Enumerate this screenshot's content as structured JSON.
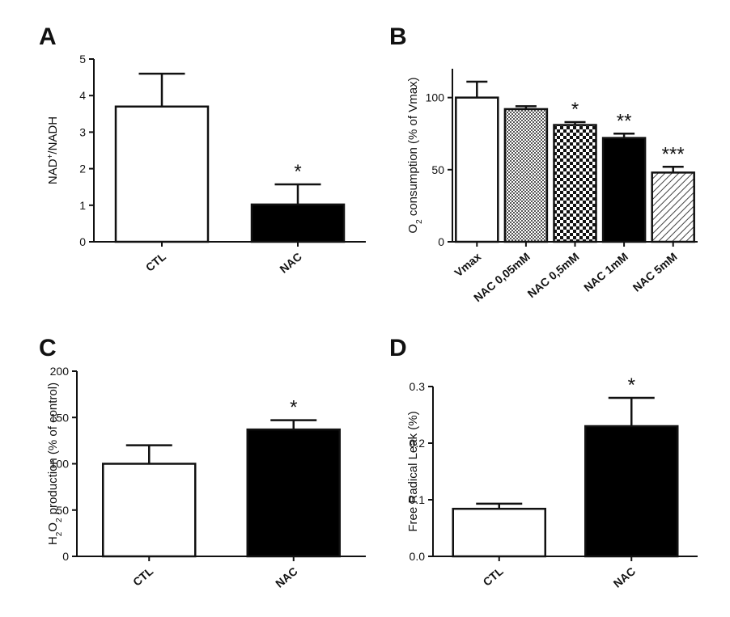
{
  "chart_data": [
    {
      "panel": "A",
      "type": "bar",
      "categories": [
        "CTL",
        "NAC"
      ],
      "values": [
        3.7,
        1.02
      ],
      "errors": [
        0.9,
        0.55
      ],
      "fills": [
        "white",
        "black"
      ],
      "significance": [
        "",
        "*"
      ],
      "ylabel": {
        "main": "NAD",
        "sup": "+",
        "rest": "/NADH"
      },
      "ylim": [
        0,
        5
      ],
      "yticks": [
        "0",
        "1",
        "2",
        "3",
        "4",
        "5"
      ],
      "rotate_labels": true
    },
    {
      "panel": "B",
      "type": "bar",
      "categories": [
        "Vmax",
        "NAC 0,05mM",
        "NAC 0,5mM",
        "NAC 1mM",
        "NAC 5mM"
      ],
      "values": [
        100,
        92,
        81,
        72,
        48
      ],
      "errors": [
        11,
        2,
        2,
        3,
        4
      ],
      "fills": [
        "white",
        "crosshatch-fine",
        "checker",
        "black",
        "diagonal"
      ],
      "significance": [
        "",
        "",
        "*",
        "**",
        "***"
      ],
      "ylabel": {
        "pre": "O",
        "sub": "2",
        "rest": " consumption (% of Vmax)"
      },
      "ylim": [
        0,
        120
      ],
      "yticks": [
        "0",
        "50",
        "100"
      ],
      "rotate_labels": true
    },
    {
      "panel": "C",
      "type": "bar",
      "categories": [
        "CTL",
        "NAC"
      ],
      "values": [
        100,
        137
      ],
      "errors": [
        20,
        10
      ],
      "fills": [
        "white",
        "black"
      ],
      "significance": [
        "",
        "*"
      ],
      "ylabel": {
        "pre": "H",
        "sub": "2",
        "mid": "O",
        "sub2": "2",
        "rest": " production (% of control)"
      },
      "ylim": [
        0,
        200
      ],
      "yticks": [
        "0",
        "50",
        "100",
        "150",
        "200"
      ],
      "rotate_labels": true
    },
    {
      "panel": "D",
      "type": "bar",
      "categories": [
        "CTL",
        "NAC"
      ],
      "values": [
        0.084,
        0.23
      ],
      "errors": [
        0.009,
        0.05
      ],
      "fills": [
        "white",
        "black"
      ],
      "significance": [
        "",
        "*"
      ],
      "ylabel": {
        "rest": "Free Radical Leak (%)"
      },
      "ylim": [
        0,
        0.3
      ],
      "yticks": [
        "0.0",
        "0.1",
        "0.2",
        "0.3"
      ],
      "rotate_labels": true
    }
  ]
}
